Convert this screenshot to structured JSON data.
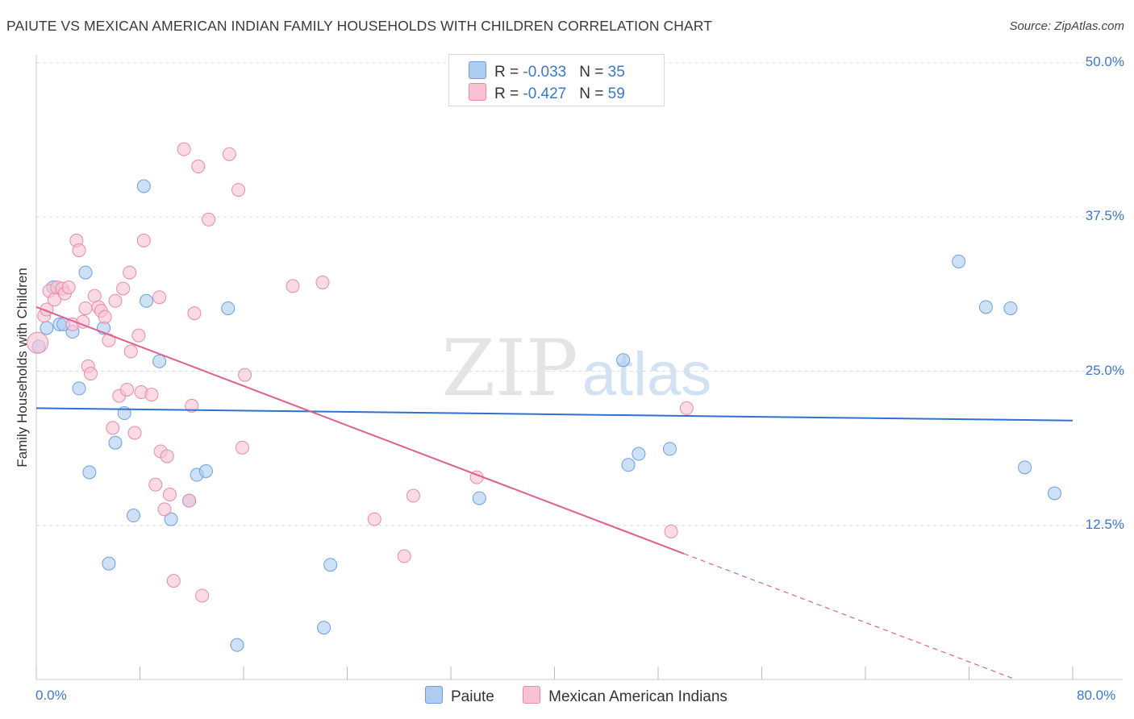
{
  "title": "PAIUTE VS MEXICAN AMERICAN INDIAN FAMILY HOUSEHOLDS WITH CHILDREN CORRELATION CHART",
  "source": "Source: ZipAtlas.com",
  "watermark": {
    "zip": "ZIP",
    "atlas": "atlas"
  },
  "legend": {
    "rows": [
      {
        "r_label": "R = ",
        "r_value": "-0.033",
        "n_label": "N = ",
        "n_value": "35",
        "color": "#aecbf0",
        "border": "#6c9fe0"
      },
      {
        "r_label": "R = ",
        "r_value": "-0.427",
        "n_label": "N = ",
        "n_value": "59",
        "color": "#f7c3d2",
        "border": "#e98aa7"
      }
    ]
  },
  "chart_data": {
    "type": "scatter",
    "title": "PAIUTE VS MEXICAN AMERICAN INDIAN FAMILY HOUSEHOLDS WITH CHILDREN CORRELATION CHART",
    "xlabel": "",
    "ylabel": "Family Households with Children",
    "xlim": [
      0,
      80
    ],
    "ylim": [
      0,
      50
    ],
    "x_tick_labels": [
      "0.0%",
      "80.0%"
    ],
    "y_ticks": [
      12.5,
      25.0,
      37.5,
      50.0
    ],
    "y_tick_labels": [
      "12.5%",
      "25.0%",
      "37.5%",
      "50.0%"
    ],
    "grid": true,
    "series": [
      {
        "name": "Paiute",
        "color": "#aecbf0",
        "edge": "#6c9fe0",
        "trend_color": "#2d72d2",
        "trend": {
          "x0": 0,
          "y0": 22.0,
          "x1": 80,
          "y1": 21.0
        },
        "points": [
          [
            0.2,
            27.0
          ],
          [
            0.8,
            28.5
          ],
          [
            1.3,
            31.8
          ],
          [
            1.8,
            28.8
          ],
          [
            2.1,
            28.8
          ],
          [
            2.8,
            28.2
          ],
          [
            3.3,
            23.6
          ],
          [
            3.8,
            33.0
          ],
          [
            4.1,
            16.8
          ],
          [
            5.2,
            28.5
          ],
          [
            5.6,
            9.4
          ],
          [
            6.1,
            19.2
          ],
          [
            6.8,
            21.6
          ],
          [
            7.5,
            13.3
          ],
          [
            8.3,
            40.0
          ],
          [
            8.5,
            30.7
          ],
          [
            9.5,
            25.8
          ],
          [
            10.4,
            13.0
          ],
          [
            11.8,
            14.5
          ],
          [
            12.4,
            16.6
          ],
          [
            13.1,
            16.9
          ],
          [
            14.8,
            30.1
          ],
          [
            15.5,
            2.8
          ],
          [
            22.2,
            4.2
          ],
          [
            22.7,
            9.3
          ],
          [
            34.2,
            14.7
          ],
          [
            45.3,
            25.9
          ],
          [
            45.7,
            17.4
          ],
          [
            46.5,
            18.3
          ],
          [
            48.9,
            18.7
          ],
          [
            71.2,
            33.9
          ],
          [
            73.3,
            30.2
          ],
          [
            75.2,
            30.1
          ],
          [
            76.3,
            17.2
          ],
          [
            78.6,
            15.1
          ]
        ]
      },
      {
        "name": "Mexican American Indians",
        "color": "#f7c3d2",
        "edge": "#e98aa7",
        "trend_color": "#e0608b",
        "trend": {
          "x0": 0,
          "y0": 30.2,
          "x1": 50,
          "y1": 10.2
        },
        "trend_dashed": {
          "x0": 50,
          "y0": 10.2,
          "x1": 75.6,
          "y1": 0.0
        },
        "points": [
          [
            0.1,
            27.3
          ],
          [
            0.6,
            29.5
          ],
          [
            0.8,
            30.0
          ],
          [
            1.0,
            31.5
          ],
          [
            1.4,
            30.8
          ],
          [
            1.6,
            31.8
          ],
          [
            2.0,
            31.7
          ],
          [
            2.2,
            31.3
          ],
          [
            2.5,
            31.8
          ],
          [
            2.8,
            28.8
          ],
          [
            3.1,
            35.6
          ],
          [
            3.3,
            34.8
          ],
          [
            3.6,
            29.0
          ],
          [
            3.8,
            30.1
          ],
          [
            4.0,
            25.4
          ],
          [
            4.2,
            24.8
          ],
          [
            4.5,
            31.1
          ],
          [
            4.8,
            30.2
          ],
          [
            5.0,
            29.9
          ],
          [
            5.3,
            29.4
          ],
          [
            5.6,
            27.5
          ],
          [
            5.9,
            20.4
          ],
          [
            6.1,
            30.7
          ],
          [
            6.4,
            23.0
          ],
          [
            6.7,
            31.7
          ],
          [
            7.0,
            23.5
          ],
          [
            7.2,
            33.0
          ],
          [
            7.3,
            26.6
          ],
          [
            7.6,
            20.0
          ],
          [
            7.9,
            27.9
          ],
          [
            8.1,
            23.3
          ],
          [
            8.3,
            35.6
          ],
          [
            8.9,
            23.1
          ],
          [
            9.2,
            15.8
          ],
          [
            9.5,
            31.0
          ],
          [
            9.6,
            18.5
          ],
          [
            9.9,
            13.8
          ],
          [
            10.1,
            18.1
          ],
          [
            10.3,
            15.0
          ],
          [
            10.6,
            8.0
          ],
          [
            11.4,
            43.0
          ],
          [
            11.8,
            14.5
          ],
          [
            12.0,
            22.2
          ],
          [
            12.2,
            29.7
          ],
          [
            12.5,
            41.6
          ],
          [
            12.8,
            6.8
          ],
          [
            13.3,
            37.3
          ],
          [
            14.9,
            42.6
          ],
          [
            15.6,
            39.7
          ],
          [
            15.9,
            18.8
          ],
          [
            16.1,
            24.7
          ],
          [
            19.8,
            31.9
          ],
          [
            22.1,
            32.2
          ],
          [
            26.1,
            13.0
          ],
          [
            28.4,
            10.0
          ],
          [
            29.1,
            14.9
          ],
          [
            34.0,
            16.4
          ],
          [
            49.0,
            12.0
          ],
          [
            50.2,
            22.0
          ]
        ]
      }
    ]
  }
}
